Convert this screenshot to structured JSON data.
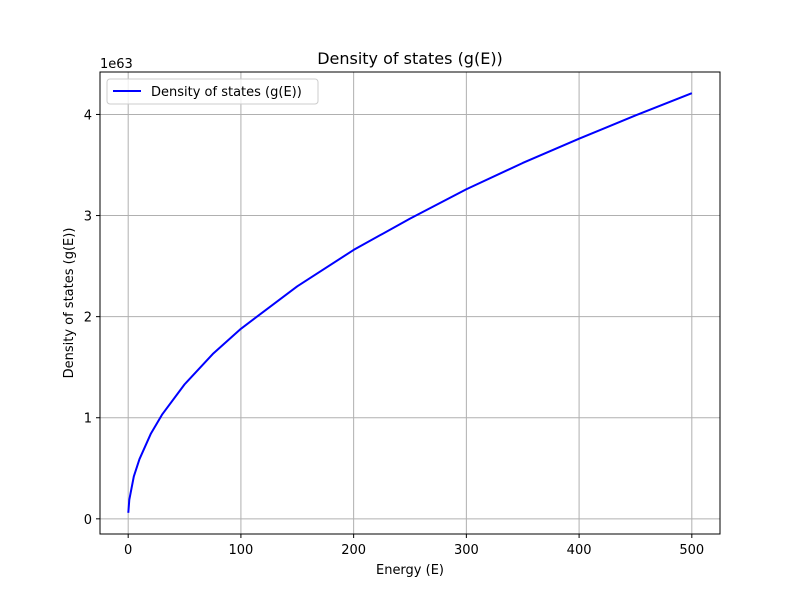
{
  "chart_data": {
    "type": "line",
    "title": "Density of states (g(E))",
    "xlabel": "Energy (E)",
    "ylabel": "Density of states (g(E))",
    "y_offset_label": "1e63",
    "xlim": [
      -25,
      525
    ],
    "ylim": [
      -0.15,
      4.42
    ],
    "xticks": [
      0,
      100,
      200,
      300,
      400,
      500
    ],
    "xtick_labels": [
      "0",
      "100",
      "200",
      "300",
      "400",
      "500"
    ],
    "yticks": [
      0,
      1,
      2,
      3,
      4
    ],
    "ytick_labels": [
      "0",
      "1",
      "2",
      "3",
      "4"
    ],
    "grid": true,
    "legend_position": "upper-left",
    "series": [
      {
        "name": "Density of states (g(E))",
        "color": "#0000ff",
        "x": [
          0.1,
          1,
          5,
          10,
          20,
          30,
          50,
          75,
          100,
          150,
          200,
          250,
          300,
          350,
          400,
          450,
          500
        ],
        "y": [
          0.06,
          0.19,
          0.42,
          0.59,
          0.84,
          1.03,
          1.33,
          1.63,
          1.88,
          2.3,
          2.66,
          2.97,
          3.26,
          3.52,
          3.76,
          3.99,
          4.21
        ]
      }
    ]
  }
}
